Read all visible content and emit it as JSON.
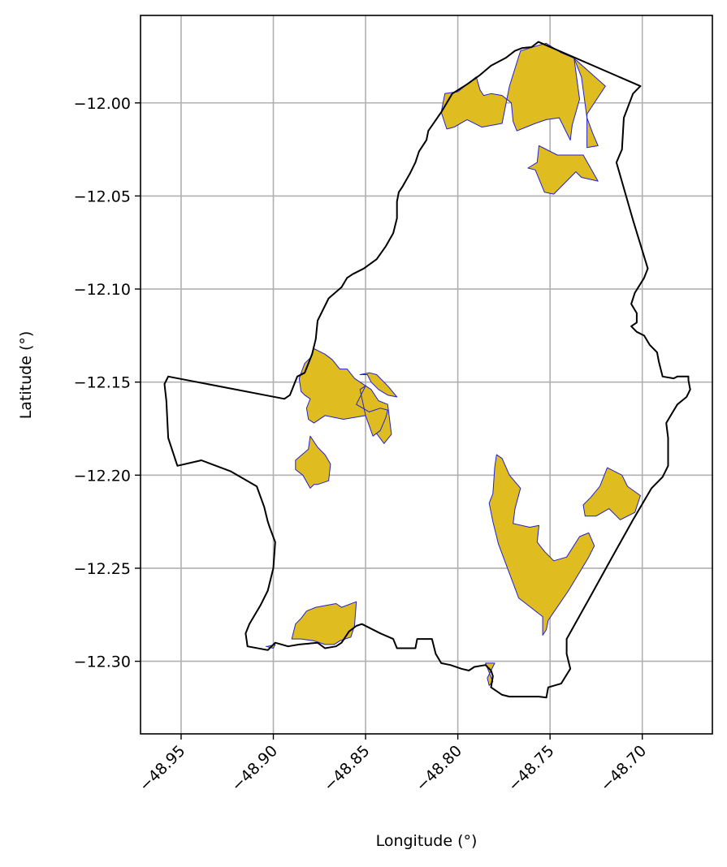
{
  "chart_data": {
    "type": "map",
    "xlabel": "Longitude (°)",
    "ylabel": "Latitude (°)",
    "xlim": [
      -48.972,
      -48.662
    ],
    "ylim": [
      -12.339,
      -11.953
    ],
    "x_ticks": [
      -48.95,
      -48.9,
      -48.85,
      -48.8,
      -48.75,
      -48.7
    ],
    "x_tick_labels": [
      "−48.95",
      "−48.90",
      "−48.85",
      "−48.80",
      "−48.75",
      "−48.70"
    ],
    "y_ticks": [
      -12.0,
      -12.05,
      -12.1,
      -12.15,
      -12.2,
      -12.25,
      -12.3
    ],
    "y_tick_labels": [
      "−12.00",
      "−12.05",
      "−12.10",
      "−12.15",
      "−12.20",
      "−12.25",
      "−12.30"
    ],
    "grid": true,
    "colors": {
      "boundary": "#000000",
      "area_fill": "#dfbc20",
      "area_edge": "#2222cc",
      "grid": "#b0b0b0"
    },
    "boundary": [
      [
        -48.7563,
        -11.9672
      ],
      [
        -48.76,
        -11.97
      ],
      [
        -48.765,
        -11.9705
      ],
      [
        -48.769,
        -11.972
      ],
      [
        -48.774,
        -11.9758
      ],
      [
        -48.782,
        -11.98
      ],
      [
        -48.788,
        -11.985
      ],
      [
        -48.795,
        -11.99
      ],
      [
        -48.803,
        -11.995
      ],
      [
        -48.809,
        -12.005
      ],
      [
        -48.816,
        -12.015
      ],
      [
        -48.817,
        -12.02
      ],
      [
        -48.821,
        -12.026
      ],
      [
        -48.823,
        -12.032
      ],
      [
        -48.826,
        -12.038
      ],
      [
        -48.83,
        -12.045
      ],
      [
        -48.832,
        -12.048
      ],
      [
        -48.833,
        -12.053
      ],
      [
        -48.833,
        -12.062
      ],
      [
        -48.835,
        -12.07
      ],
      [
        -48.839,
        -12.077
      ],
      [
        -48.844,
        -12.084
      ],
      [
        -48.851,
        -12.089
      ],
      [
        -48.857,
        -12.092
      ],
      [
        -48.86,
        -12.094
      ],
      [
        -48.863,
        -12.099
      ],
      [
        -48.87,
        -12.105
      ],
      [
        -48.876,
        -12.117
      ],
      [
        -48.877,
        -12.127
      ],
      [
        -48.879,
        -12.135
      ],
      [
        -48.883,
        -12.145
      ],
      [
        -48.887,
        -12.147
      ],
      [
        -48.891,
        -12.157
      ],
      [
        -48.894,
        -12.159
      ],
      [
        -48.957,
        -12.147
      ],
      [
        -48.959,
        -12.151
      ],
      [
        -48.958,
        -12.16
      ],
      [
        -48.957,
        -12.18
      ],
      [
        -48.952,
        -12.195
      ],
      [
        -48.939,
        -12.192
      ],
      [
        -48.923,
        -12.198
      ],
      [
        -48.909,
        -12.206
      ],
      [
        -48.905,
        -12.217
      ],
      [
        -48.903,
        -12.225
      ],
      [
        -48.902,
        -12.228
      ],
      [
        -48.899,
        -12.236
      ],
      [
        -48.9,
        -12.25
      ],
      [
        -48.903,
        -12.262
      ],
      [
        -48.907,
        -12.27
      ],
      [
        -48.913,
        -12.28
      ],
      [
        -48.915,
        -12.285
      ],
      [
        -48.914,
        -12.292
      ],
      [
        -48.903,
        -12.294
      ],
      [
        -48.899,
        -12.29
      ],
      [
        -48.892,
        -12.292
      ],
      [
        -48.886,
        -12.291
      ],
      [
        -48.876,
        -12.29
      ],
      [
        -48.872,
        -12.293
      ],
      [
        -48.866,
        -12.292
      ],
      [
        -48.863,
        -12.29
      ],
      [
        -48.859,
        -12.284
      ],
      [
        -48.855,
        -12.281
      ],
      [
        -48.852,
        -12.28
      ],
      [
        -48.842,
        -12.285
      ],
      [
        -48.835,
        -12.288
      ],
      [
        -48.833,
        -12.293
      ],
      [
        -48.823,
        -12.293
      ],
      [
        -48.822,
        -12.288
      ],
      [
        -48.814,
        -12.288
      ],
      [
        -48.812,
        -12.296
      ],
      [
        -48.809,
        -12.301
      ],
      [
        -48.804,
        -12.302
      ],
      [
        -48.798,
        -12.304
      ],
      [
        -48.794,
        -12.305
      ],
      [
        -48.791,
        -12.303
      ],
      [
        -48.785,
        -12.302
      ],
      [
        -48.782,
        -12.305
      ],
      [
        -48.781,
        -12.308
      ],
      [
        -48.782,
        -12.314
      ],
      [
        -48.776,
        -12.318
      ],
      [
        -48.772,
        -12.319
      ],
      [
        -48.756,
        -12.319
      ],
      [
        -48.752,
        -12.3195
      ],
      [
        -48.751,
        -12.314
      ],
      [
        -48.744,
        -12.312
      ],
      [
        -48.739,
        -12.304
      ],
      [
        -48.741,
        -12.296
      ],
      [
        -48.741,
        -12.288
      ],
      [
        -48.728,
        -12.265
      ],
      [
        -48.718,
        -12.247
      ],
      [
        -48.705,
        -12.224
      ],
      [
        -48.695,
        -12.207
      ],
      [
        -48.689,
        -12.201
      ],
      [
        -48.686,
        -12.195
      ],
      [
        -48.686,
        -12.186
      ],
      [
        -48.686,
        -12.18
      ],
      [
        -48.687,
        -12.172
      ],
      [
        -48.684,
        -12.167
      ],
      [
        -48.681,
        -12.162
      ],
      [
        -48.676,
        -12.158
      ],
      [
        -48.674,
        -12.154
      ],
      [
        -48.675,
        -12.149
      ],
      [
        -48.675,
        -12.147
      ],
      [
        -48.681,
        -12.147
      ],
      [
        -48.683,
        -12.148
      ],
      [
        -48.689,
        -12.147
      ],
      [
        -48.691,
        -12.139
      ],
      [
        -48.692,
        -12.134
      ],
      [
        -48.696,
        -12.13
      ],
      [
        -48.699,
        -12.125
      ],
      [
        -48.703,
        -12.123
      ],
      [
        -48.706,
        -12.12
      ],
      [
        -48.703,
        -12.118
      ],
      [
        -48.703,
        -12.113
      ],
      [
        -48.706,
        -12.108
      ],
      [
        -48.704,
        -12.102
      ],
      [
        -48.699,
        -12.094
      ],
      [
        -48.697,
        -12.089
      ],
      [
        -48.705,
        -12.063
      ],
      [
        -48.714,
        -12.032
      ],
      [
        -48.711,
        -12.025
      ],
      [
        -48.71,
        -12.008
      ],
      [
        -48.705,
        -11.995
      ],
      [
        -48.701,
        -11.991
      ],
      [
        -48.7563,
        -11.9672
      ]
    ],
    "areas": [
      {
        "points": [
          [
            -48.752,
            -11.968
          ],
          [
            -48.744,
            -11.973
          ],
          [
            -48.737,
            -11.976
          ],
          [
            -48.734,
            -11.998
          ],
          [
            -48.738,
            -12.012
          ],
          [
            -48.739,
            -12.02
          ],
          [
            -48.745,
            -12.008
          ],
          [
            -48.752,
            -12.009
          ],
          [
            -48.758,
            -12.011
          ],
          [
            -48.763,
            -12.013
          ],
          [
            -48.768,
            -12.015
          ],
          [
            -48.77,
            -12.01
          ],
          [
            -48.771,
            -12.0
          ],
          [
            -48.776,
            -11.996
          ],
          [
            -48.782,
            -11.995
          ],
          [
            -48.786,
            -11.996
          ],
          [
            -48.788,
            -11.993
          ],
          [
            -48.79,
            -11.986
          ],
          [
            -48.795,
            -11.99
          ],
          [
            -48.8,
            -11.994
          ],
          [
            -48.807,
            -11.995
          ],
          [
            -48.809,
            -12.005
          ],
          [
            -48.806,
            -12.014
          ],
          [
            -48.802,
            -12.013
          ],
          [
            -48.795,
            -12.009
          ],
          [
            -48.787,
            -12.013
          ],
          [
            -48.776,
            -12.011
          ],
          [
            -48.772,
            -11.991
          ],
          [
            -48.766,
            -11.972
          ],
          [
            -48.756,
            -11.969
          ],
          [
            -48.752,
            -11.968
          ]
        ]
      },
      {
        "points": [
          [
            -48.737,
            -11.976
          ],
          [
            -48.733,
            -11.986
          ],
          [
            -48.73,
            -12.008
          ],
          [
            -48.727,
            -12.016
          ],
          [
            -48.724,
            -12.023
          ],
          [
            -48.73,
            -12.024
          ],
          [
            -48.73,
            -12.006
          ],
          [
            -48.72,
            -11.991
          ],
          [
            -48.737,
            -11.976
          ]
        ]
      },
      {
        "points": [
          [
            -48.756,
            -12.023
          ],
          [
            -48.757,
            -12.032
          ],
          [
            -48.762,
            -12.035
          ],
          [
            -48.758,
            -12.036
          ],
          [
            -48.753,
            -12.048
          ],
          [
            -48.748,
            -12.049
          ],
          [
            -48.736,
            -12.037
          ],
          [
            -48.733,
            -12.04
          ],
          [
            -48.724,
            -12.042
          ],
          [
            -48.732,
            -12.028
          ],
          [
            -48.746,
            -12.028
          ],
          [
            -48.756,
            -12.023
          ]
        ]
      },
      {
        "points": [
          [
            -48.878,
            -12.132
          ],
          [
            -48.872,
            -12.135
          ],
          [
            -48.868,
            -12.138
          ],
          [
            -48.864,
            -12.143
          ],
          [
            -48.86,
            -12.143
          ],
          [
            -48.856,
            -12.148
          ],
          [
            -48.85,
            -12.152
          ],
          [
            -48.847,
            -12.154
          ],
          [
            -48.843,
            -12.16
          ],
          [
            -48.838,
            -12.162
          ],
          [
            -48.836,
            -12.178
          ],
          [
            -48.84,
            -12.183
          ],
          [
            -48.846,
            -12.175
          ],
          [
            -48.85,
            -12.168
          ],
          [
            -48.862,
            -12.17
          ],
          [
            -48.872,
            -12.168
          ],
          [
            -48.878,
            -12.172
          ],
          [
            -48.881,
            -12.17
          ],
          [
            -48.882,
            -12.164
          ],
          [
            -48.88,
            -12.159
          ],
          [
            -48.883,
            -12.157
          ],
          [
            -48.885,
            -12.155
          ],
          [
            -48.886,
            -12.148
          ],
          [
            -48.883,
            -12.14
          ],
          [
            -48.88,
            -12.137
          ],
          [
            -48.878,
            -12.132
          ]
        ]
      },
      {
        "points": [
          [
            -48.853,
            -12.146
          ],
          [
            -48.849,
            -12.146
          ],
          [
            -48.847,
            -12.15
          ],
          [
            -48.843,
            -12.154
          ],
          [
            -48.838,
            -12.157
          ],
          [
            -48.833,
            -12.158
          ],
          [
            -48.838,
            -12.152
          ],
          [
            -48.844,
            -12.146
          ],
          [
            -48.848,
            -12.145
          ],
          [
            -48.853,
            -12.146
          ]
        ]
      },
      {
        "points": [
          [
            -48.85,
            -12.152
          ],
          [
            -48.855,
            -12.162
          ],
          [
            -48.848,
            -12.166
          ],
          [
            -48.842,
            -12.164
          ],
          [
            -48.838,
            -12.165
          ],
          [
            -48.839,
            -12.169
          ],
          [
            -48.842,
            -12.176
          ],
          [
            -48.846,
            -12.179
          ],
          [
            -48.85,
            -12.168
          ],
          [
            -48.853,
            -12.154
          ],
          [
            -48.85,
            -12.152
          ]
        ]
      },
      {
        "points": [
          [
            -48.88,
            -12.179
          ],
          [
            -48.876,
            -12.185
          ],
          [
            -48.872,
            -12.189
          ],
          [
            -48.869,
            -12.194
          ],
          [
            -48.87,
            -12.203
          ],
          [
            -48.876,
            -12.205
          ],
          [
            -48.878,
            -12.205
          ],
          [
            -48.88,
            -12.207
          ],
          [
            -48.884,
            -12.2
          ],
          [
            -48.888,
            -12.197
          ],
          [
            -48.888,
            -12.192
          ],
          [
            -48.881,
            -12.186
          ],
          [
            -48.88,
            -12.179
          ]
        ]
      },
      {
        "points": [
          [
            -48.779,
            -12.189
          ],
          [
            -48.78,
            -12.196
          ],
          [
            -48.781,
            -12.21
          ],
          [
            -48.783,
            -12.215
          ],
          [
            -48.781,
            -12.225
          ],
          [
            -48.778,
            -12.237
          ],
          [
            -48.767,
            -12.266
          ],
          [
            -48.754,
            -12.276
          ],
          [
            -48.754,
            -12.286
          ],
          [
            -48.752,
            -12.283
          ],
          [
            -48.751,
            -12.278
          ],
          [
            -48.74,
            -12.262
          ],
          [
            -48.729,
            -12.244
          ],
          [
            -48.726,
            -12.238
          ],
          [
            -48.729,
            -12.231
          ],
          [
            -48.734,
            -12.233
          ],
          [
            -48.741,
            -12.244
          ],
          [
            -48.748,
            -12.246
          ],
          [
            -48.753,
            -12.241
          ],
          [
            -48.757,
            -12.236
          ],
          [
            -48.756,
            -12.227
          ],
          [
            -48.761,
            -12.228
          ],
          [
            -48.77,
            -12.226
          ],
          [
            -48.769,
            -12.218
          ],
          [
            -48.766,
            -12.207
          ],
          [
            -48.772,
            -12.2
          ],
          [
            -48.776,
            -12.191
          ],
          [
            -48.779,
            -12.189
          ]
        ]
      },
      {
        "points": [
          [
            -48.719,
            -12.196
          ],
          [
            -48.711,
            -12.2
          ],
          [
            -48.708,
            -12.206
          ],
          [
            -48.701,
            -12.211
          ],
          [
            -48.704,
            -12.22
          ],
          [
            -48.712,
            -12.224
          ],
          [
            -48.718,
            -12.218
          ],
          [
            -48.725,
            -12.222
          ],
          [
            -48.731,
            -12.222
          ],
          [
            -48.732,
            -12.216
          ],
          [
            -48.728,
            -12.212
          ],
          [
            -48.723,
            -12.206
          ],
          [
            -48.719,
            -12.196
          ]
        ]
      },
      {
        "points": [
          [
            -48.882,
            -12.273
          ],
          [
            -48.877,
            -12.271
          ],
          [
            -48.866,
            -12.269
          ],
          [
            -48.863,
            -12.271
          ],
          [
            -48.855,
            -12.268
          ],
          [
            -48.856,
            -12.281
          ],
          [
            -48.858,
            -12.287
          ],
          [
            -48.864,
            -12.289
          ],
          [
            -48.867,
            -12.291
          ],
          [
            -48.872,
            -12.291
          ],
          [
            -48.878,
            -12.289
          ],
          [
            -48.885,
            -12.288
          ],
          [
            -48.89,
            -12.288
          ],
          [
            -48.888,
            -12.28
          ],
          [
            -48.885,
            -12.277
          ],
          [
            -48.882,
            -12.273
          ]
        ]
      },
      {
        "points": [
          [
            -48.904,
            -12.292
          ],
          [
            -48.9,
            -12.293
          ],
          [
            -48.899,
            -12.291
          ],
          [
            -48.903,
            -12.292
          ],
          [
            -48.904,
            -12.292
          ]
        ]
      },
      {
        "points": [
          [
            -48.785,
            -12.301
          ],
          [
            -48.78,
            -12.301
          ],
          [
            -48.782,
            -12.305
          ],
          [
            -48.784,
            -12.309
          ],
          [
            -48.783,
            -12.313
          ],
          [
            -48.781,
            -12.311
          ],
          [
            -48.785,
            -12.301
          ]
        ]
      }
    ]
  }
}
